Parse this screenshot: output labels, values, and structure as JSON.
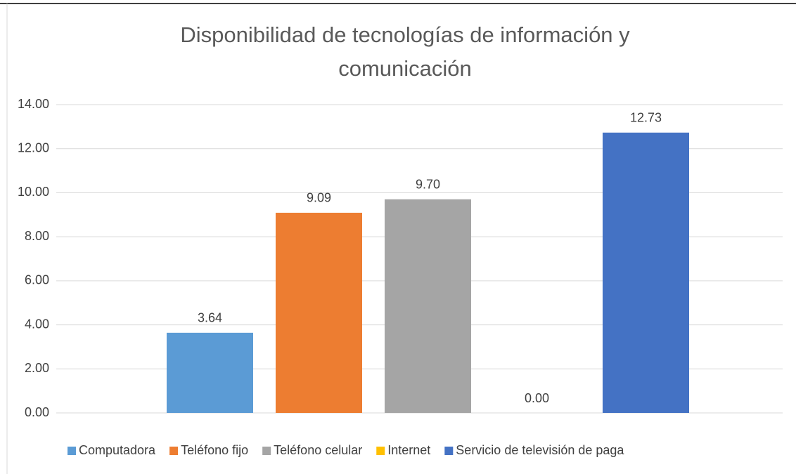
{
  "chart_data": {
    "type": "bar",
    "title": "Disponibilidad de tecnologías de información y comunicación",
    "series": [
      {
        "name": "Computadora",
        "color": "#5b9bd5",
        "values": [
          3.64
        ],
        "value_labels": [
          "3.64"
        ]
      },
      {
        "name": "Teléfono fijo",
        "color": "#ed7d31",
        "values": [
          9.09
        ],
        "value_labels": [
          "9.09"
        ]
      },
      {
        "name": "Teléfono celular",
        "color": "#a5a5a5",
        "values": [
          9.7
        ],
        "value_labels": [
          "9.70"
        ]
      },
      {
        "name": "Internet",
        "color": "#ffc000",
        "values": [
          0
        ],
        "value_labels": [
          "0.00"
        ]
      },
      {
        "name": "Servicio de televisión de paga",
        "color": "#4472c4",
        "values": [
          12.73
        ],
        "value_labels": [
          "12.73"
        ]
      }
    ],
    "ylim": [
      0,
      14
    ],
    "yticks": [
      {
        "value": 0,
        "label": "0.00"
      },
      {
        "value": 2,
        "label": "2.00"
      },
      {
        "value": 4,
        "label": "4.00"
      },
      {
        "value": 6,
        "label": "6.00"
      },
      {
        "value": 8,
        "label": "8.00"
      },
      {
        "value": 10,
        "label": "10.00"
      },
      {
        "value": 12,
        "label": "12.00"
      },
      {
        "value": 14,
        "label": "14.00"
      }
    ],
    "grid": true,
    "legend": "bottom"
  }
}
